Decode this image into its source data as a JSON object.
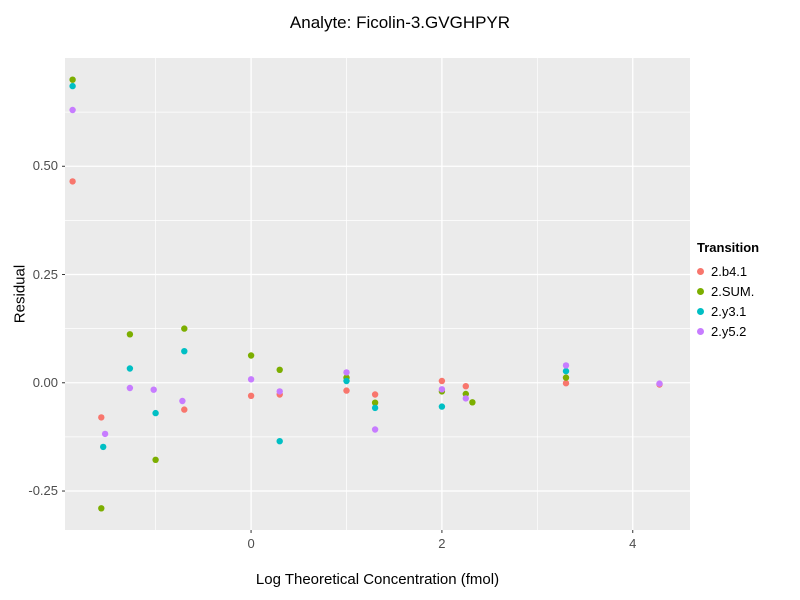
{
  "legend": {
    "title": "Transition",
    "items": [
      {
        "label": "2.b4.1",
        "color": "#F8766D"
      },
      {
        "label": "2.SUM.",
        "color": "#7CAE00"
      },
      {
        "label": "2.y3.1",
        "color": "#00BFC4"
      },
      {
        "label": "2.y5.2",
        "color": "#C77CFF"
      }
    ]
  },
  "colors": {
    "panel_bg": "#EBEBEB",
    "gridline": "#FFFFFF",
    "tick_mark": "#333333",
    "tick_text": "#4D4D4D",
    "text": "#000000"
  },
  "chart_data": {
    "type": "scatter",
    "title": "Analyte: Ficolin-3.GVGHPYR",
    "xlabel": "Log Theoretical Concentration (fmol)",
    "ylabel": "Residual",
    "xlim": [
      -1.95,
      4.6
    ],
    "ylim": [
      -0.34,
      0.75
    ],
    "grid": true,
    "legend_position": "right",
    "x_ticks": [
      {
        "value": 0,
        "label": "0"
      },
      {
        "value": 2,
        "label": "2"
      },
      {
        "value": 4,
        "label": "4"
      }
    ],
    "y_ticks": [
      {
        "value": -0.25,
        "label": "-0.25"
      },
      {
        "value": 0.0,
        "label": "0.00"
      },
      {
        "value": 0.25,
        "label": "0.25"
      },
      {
        "value": 0.5,
        "label": "0.50"
      }
    ],
    "x_minor": [
      -1,
      1,
      3
    ],
    "y_minor": [
      -0.125,
      0.125,
      0.375,
      0.625
    ],
    "series": [
      {
        "name": "2.b4.1",
        "color": "#F8766D",
        "points": [
          [
            -1.87,
            0.465
          ],
          [
            -1.57,
            -0.08
          ],
          [
            -0.7,
            -0.062
          ],
          [
            0.0,
            -0.03
          ],
          [
            0.3,
            -0.027
          ],
          [
            1.0,
            -0.018
          ],
          [
            1.3,
            -0.027
          ],
          [
            2.0,
            0.004
          ],
          [
            2.25,
            -0.008
          ],
          [
            3.3,
            -0.001
          ],
          [
            4.28,
            -0.004
          ]
        ]
      },
      {
        "name": "2.SUM.",
        "color": "#7CAE00",
        "points": [
          [
            -1.87,
            0.7
          ],
          [
            -1.57,
            -0.29
          ],
          [
            -1.27,
            0.112
          ],
          [
            -1.0,
            -0.178
          ],
          [
            -0.7,
            0.125
          ],
          [
            0.0,
            0.063
          ],
          [
            0.3,
            0.03
          ],
          [
            1.0,
            0.012
          ],
          [
            1.3,
            -0.046
          ],
          [
            2.0,
            -0.02
          ],
          [
            2.25,
            -0.026
          ],
          [
            2.32,
            -0.045
          ],
          [
            3.3,
            0.012
          ]
        ]
      },
      {
        "name": "2.y3.1",
        "color": "#00BFC4",
        "points": [
          [
            -1.87,
            0.685
          ],
          [
            -1.55,
            -0.148
          ],
          [
            -1.27,
            0.033
          ],
          [
            -1.0,
            -0.07
          ],
          [
            -0.7,
            0.073
          ],
          [
            0.3,
            -0.135
          ],
          [
            1.0,
            0.004
          ],
          [
            1.3,
            -0.058
          ],
          [
            2.0,
            -0.055
          ],
          [
            3.3,
            0.027
          ]
        ]
      },
      {
        "name": "2.y5.2",
        "color": "#C77CFF",
        "points": [
          [
            -1.87,
            0.63
          ],
          [
            -1.53,
            -0.118
          ],
          [
            -1.27,
            -0.012
          ],
          [
            -1.02,
            -0.016
          ],
          [
            -0.72,
            -0.042
          ],
          [
            0.0,
            0.008
          ],
          [
            0.3,
            -0.02
          ],
          [
            1.0,
            0.024
          ],
          [
            1.3,
            -0.108
          ],
          [
            2.0,
            -0.015
          ],
          [
            2.25,
            -0.036
          ],
          [
            3.3,
            0.04
          ],
          [
            4.28,
            -0.002
          ]
        ]
      }
    ]
  }
}
